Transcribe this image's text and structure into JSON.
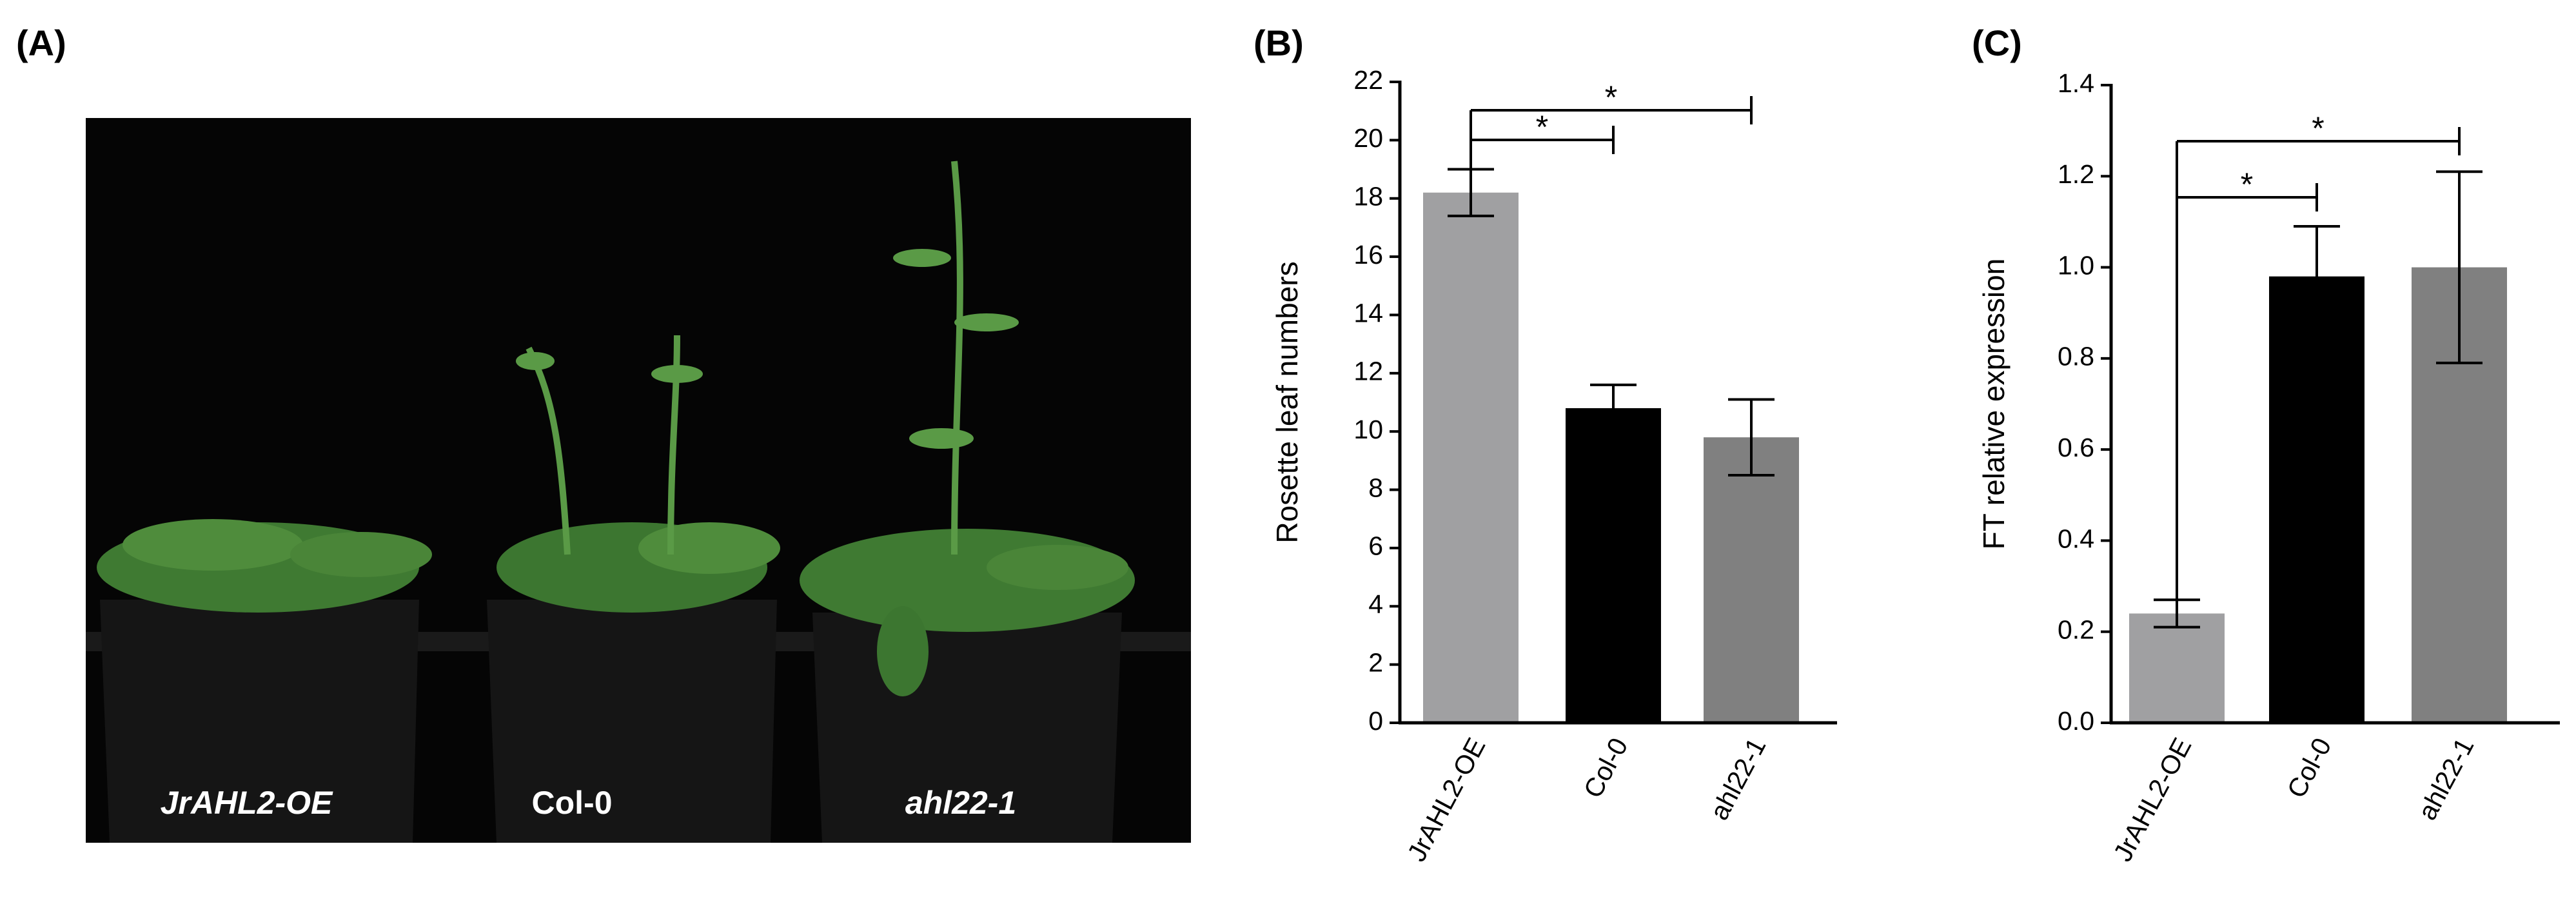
{
  "figure": {
    "panel_a": {
      "label": "(A)",
      "photo_labels": [
        "JrAHL2-OE",
        "Col-0",
        "ahl22-1"
      ]
    }
  },
  "chart_data": [
    {
      "type": "bar",
      "panel_label": "(B)",
      "ylabel": "Rosette leaf numbers",
      "categories": [
        "JrAHL2-OE",
        "Col-0",
        "ahl22-1"
      ],
      "values": [
        18.2,
        10.8,
        9.8
      ],
      "errors": [
        0.8,
        0.8,
        1.3
      ],
      "colors": [
        "#a0a0a2",
        "#000000",
        "#808080"
      ],
      "ylim": [
        0,
        22
      ],
      "yticks": [
        0,
        2,
        4,
        6,
        8,
        10,
        12,
        14,
        16,
        18,
        20,
        22
      ],
      "annotations": [
        {
          "text": "*",
          "from": 0,
          "to": 1
        },
        {
          "text": "*",
          "from": 0,
          "to": 2
        }
      ]
    },
    {
      "type": "bar",
      "panel_label": "(C)",
      "ylabel": "FT relative expression",
      "categories": [
        "JrAHL2-OE",
        "Col-0",
        "ahl22-1"
      ],
      "values": [
        0.24,
        0.98,
        1.0
      ],
      "errors": [
        0.03,
        0.11,
        0.21
      ],
      "colors": [
        "#a0a0a2",
        "#000000",
        "#808080"
      ],
      "ylim": [
        0,
        1.4
      ],
      "yticks": [
        {
          "value": 0,
          "label": "0.0"
        },
        0.2,
        0.4,
        0.6,
        0.8,
        {
          "value": 1,
          "label": "1.0"
        },
        1.2,
        1.4
      ],
      "annotations": [
        {
          "text": "*",
          "from": 0,
          "to": 1
        },
        {
          "text": "*",
          "from": 0,
          "to": 2
        }
      ]
    }
  ]
}
